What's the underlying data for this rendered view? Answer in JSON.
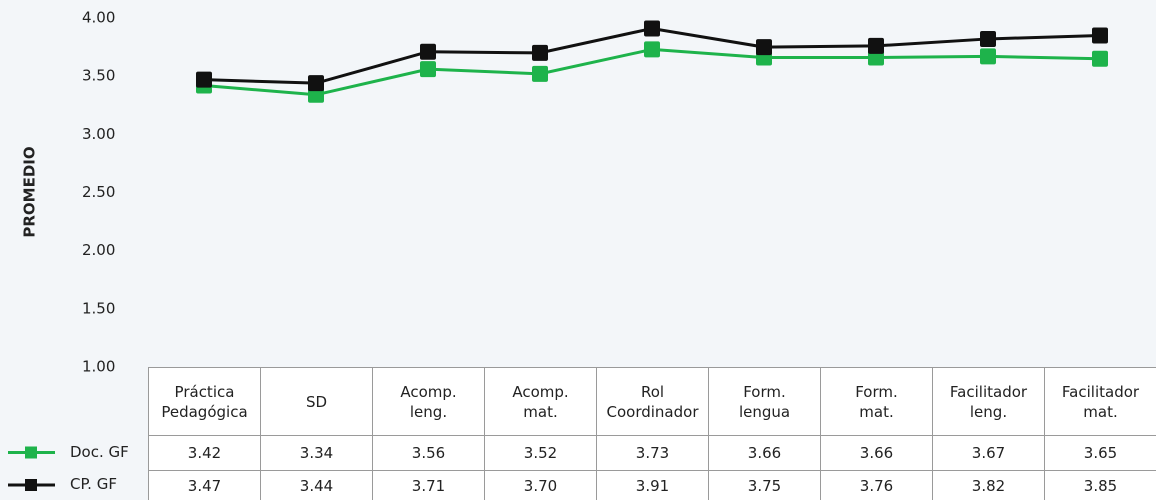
{
  "chart_data": {
    "type": "line",
    "y_label": "PROMEDIO",
    "categories": [
      "Práctica\nPedagógica",
      "SD",
      "Acomp.\nleng.",
      "Acomp.\nmat.",
      "Rol\nCoordinador",
      "Form.\nlengua",
      "Form.\nmat.",
      "Facilitador\nleng.",
      "Facilitador\nmat."
    ],
    "series": [
      {
        "name": "Doc. GF",
        "color": "#1eb34b",
        "values": [
          3.42,
          3.34,
          3.56,
          3.52,
          3.73,
          3.66,
          3.66,
          3.67,
          3.65
        ],
        "value_labels": [
          "3.42",
          "3.34",
          "3.56",
          "3.52",
          "3.73",
          "3.66",
          "3.66",
          "3.67",
          "3.65"
        ]
      },
      {
        "name": "CP. GF",
        "color": "#111111",
        "values": [
          3.47,
          3.44,
          3.71,
          3.7,
          3.91,
          3.75,
          3.76,
          3.82,
          3.85
        ],
        "value_labels": [
          "3.47",
          "3.44",
          "3.71",
          "3.70",
          "3.91",
          "3.75",
          "3.76",
          "3.82",
          "3.85"
        ]
      }
    ],
    "ylim": [
      1,
      4
    ],
    "yticks": [
      {
        "value": 1,
        "label": "1.00"
      },
      {
        "value": 1.5,
        "label": "1.50"
      },
      {
        "value": 2,
        "label": "2.00"
      },
      {
        "value": 2.5,
        "label": "2.50"
      },
      {
        "value": 3,
        "label": "3.00"
      },
      {
        "value": 3.5,
        "label": "3.50"
      },
      {
        "value": 4,
        "label": "4.00"
      }
    ]
  }
}
